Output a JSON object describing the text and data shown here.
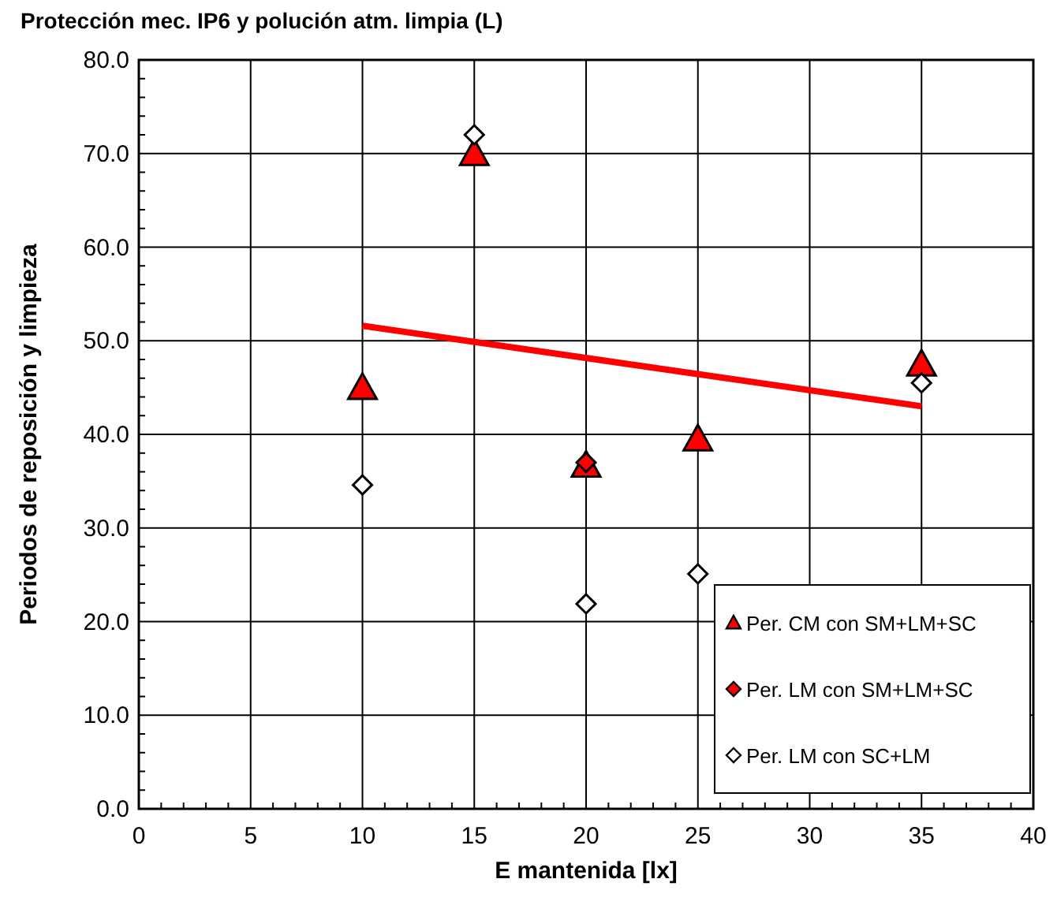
{
  "chart_data": {
    "type": "scatter",
    "title": "Protección mec.  IP6 y polución atm. limpia (L)",
    "xlabel": "E mantenida [lx]",
    "ylabel": "Periodos de reposición y limpieza",
    "x": [
      10,
      15,
      20,
      25,
      35
    ],
    "series": [
      {
        "name": "Per. CM con SM+LM+SC",
        "color": "#ff0000",
        "marker": "triangle",
        "values": [
          45.0,
          70.0,
          36.7,
          39.5,
          47.5
        ]
      },
      {
        "name": "Per. LM con SM+LM+SC",
        "color": "#ff0000",
        "marker": "diamond",
        "values": [
          null,
          null,
          37.0,
          null,
          null
        ]
      },
      {
        "name": "Per. LM con SC+LM",
        "color": "#ffffff",
        "marker": "diamond",
        "values": [
          34.6,
          72.0,
          21.9,
          25.1,
          45.5
        ]
      },
      {
        "type": "line",
        "color": "#ff0000",
        "x": [
          10,
          35
        ],
        "values": [
          51.6,
          43.0
        ]
      }
    ],
    "xlim": [
      0,
      40
    ],
    "xticks": [
      0,
      5,
      10,
      15,
      20,
      25,
      30,
      35,
      40
    ],
    "ylim": [
      0,
      80
    ],
    "yticks": [
      {
        "value": 0,
        "label": "0.0"
      },
      {
        "value": 10,
        "label": "10.0"
      },
      {
        "value": 20,
        "label": "20.0"
      },
      {
        "value": 30,
        "label": "30.0"
      },
      {
        "value": 40,
        "label": "40.0"
      },
      {
        "value": 50,
        "label": "50.0"
      },
      {
        "value": 60,
        "label": "60.0"
      },
      {
        "value": 70,
        "label": "70.0"
      },
      {
        "value": 80,
        "label": "80.0"
      }
    ],
    "grid": true,
    "legend": "bottom right"
  }
}
